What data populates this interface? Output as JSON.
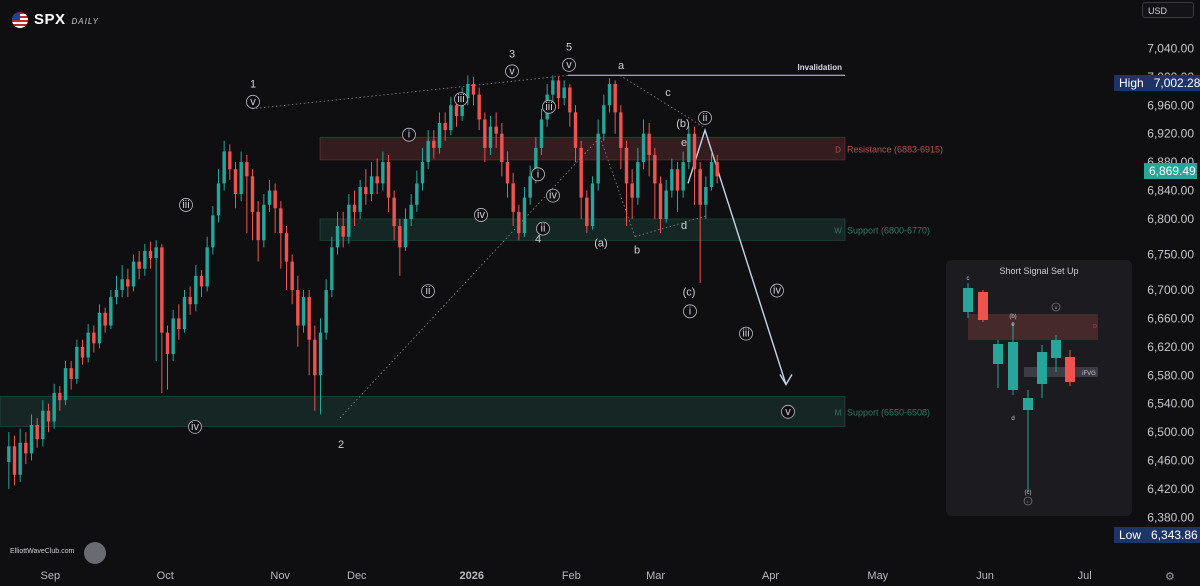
{
  "header": {
    "ticker": "SPX",
    "timeframe": "DAILY",
    "currency": "USD"
  },
  "footer": {
    "site": "ElliottWaveClub.com"
  },
  "price_badges": {
    "high_label": "High",
    "high_value": "7,002.28",
    "last_value": "6,869.49",
    "low_label": "Low",
    "low_value": "6,343.86"
  },
  "inset": {
    "title": "Short Signal Set Up",
    "labels": [
      "c",
      "(b)",
      "e",
      "ii",
      "d",
      "(c)",
      "i",
      "iFVG",
      "D"
    ]
  },
  "chart_data": {
    "type": "candlestick",
    "title": "",
    "y_axis": {
      "position": "right",
      "ylim": [
        6320,
        7080
      ],
      "ticks": [
        7040,
        7000,
        6960,
        6920,
        6880,
        6840,
        6800,
        6750,
        6700,
        6660,
        6620,
        6580,
        6540,
        6500,
        6460,
        6420,
        6380
      ],
      "tick_labels": [
        "7,040.00",
        "7,000.00",
        "6,960.00",
        "6,920.00",
        "6,880.00",
        "6,840.00",
        "6,800.00",
        "6,750.00",
        "6,700.00",
        "6,660.00",
        "6,620.00",
        "6,580.00",
        "6,540.00",
        "6,500.00",
        "6,460.00",
        "6,420.00",
        "6,380.00"
      ]
    },
    "x_axis": {
      "tick_labels": [
        "Sep",
        "Oct",
        "Nov",
        "Dec",
        "2026",
        "Feb",
        "Mar",
        "Apr",
        "May",
        "Jun",
        "Jul"
      ],
      "tick_pos": [
        0.5,
        2.0,
        3.5,
        4.5,
        6.0,
        7.3,
        8.4,
        9.9,
        11.3,
        12.7,
        14.0
      ]
    },
    "candles": [
      [
        6458,
        6480,
        6420,
        6500
      ],
      [
        6480,
        6440,
        6425,
        6495
      ],
      [
        6440,
        6485,
        6430,
        6505
      ],
      [
        6485,
        6470,
        6455,
        6500
      ],
      [
        6470,
        6510,
        6460,
        6525
      ],
      [
        6510,
        6490,
        6478,
        6520
      ],
      [
        6490,
        6530,
        6480,
        6545
      ],
      [
        6530,
        6515,
        6500,
        6540
      ],
      [
        6515,
        6555,
        6505,
        6568
      ],
      [
        6555,
        6545,
        6530,
        6565
      ],
      [
        6545,
        6590,
        6538,
        6600
      ],
      [
        6590,
        6575,
        6560,
        6600
      ],
      [
        6575,
        6620,
        6568,
        6630
      ],
      [
        6620,
        6605,
        6595,
        6630
      ],
      [
        6605,
        6640,
        6598,
        6652
      ],
      [
        6640,
        6625,
        6612,
        6650
      ],
      [
        6625,
        6668,
        6618,
        6680
      ],
      [
        6668,
        6650,
        6640,
        6675
      ],
      [
        6650,
        6690,
        6645,
        6700
      ],
      [
        6690,
        6700,
        6680,
        6720
      ],
      [
        6700,
        6715,
        6690,
        6735
      ],
      [
        6715,
        6705,
        6690,
        6730
      ],
      [
        6705,
        6740,
        6698,
        6750
      ],
      [
        6740,
        6730,
        6715,
        6755
      ],
      [
        6730,
        6755,
        6720,
        6765
      ],
      [
        6755,
        6745,
        6730,
        6768
      ],
      [
        6745,
        6760,
        6600,
        6770
      ],
      [
        6760,
        6640,
        6555,
        6765
      ],
      [
        6640,
        6610,
        6560,
        6650
      ],
      [
        6610,
        6660,
        6600,
        6672
      ],
      [
        6660,
        6645,
        6630,
        6680
      ],
      [
        6645,
        6690,
        6640,
        6700
      ],
      [
        6690,
        6680,
        6665,
        6705
      ],
      [
        6680,
        6720,
        6670,
        6735
      ],
      [
        6720,
        6705,
        6690,
        6728
      ],
      [
        6705,
        6760,
        6698,
        6775
      ],
      [
        6760,
        6805,
        6750,
        6818
      ],
      [
        6805,
        6850,
        6795,
        6870
      ],
      [
        6850,
        6895,
        6840,
        6910
      ],
      [
        6895,
        6870,
        6855,
        6905
      ],
      [
        6870,
        6835,
        6815,
        6880
      ],
      [
        6835,
        6880,
        6825,
        6895
      ],
      [
        6880,
        6860,
        6780,
        6890
      ],
      [
        6860,
        6810,
        6770,
        6870
      ],
      [
        6810,
        6770,
        6740,
        6825
      ],
      [
        6770,
        6820,
        6760,
        6835
      ],
      [
        6820,
        6840,
        6810,
        6855
      ],
      [
        6840,
        6815,
        6780,
        6850
      ],
      [
        6815,
        6780,
        6730,
        6825
      ],
      [
        6780,
        6740,
        6700,
        6790
      ],
      [
        6740,
        6700,
        6680,
        6750
      ],
      [
        6700,
        6650,
        6620,
        6720
      ],
      [
        6650,
        6690,
        6640,
        6700
      ],
      [
        6690,
        6630,
        6580,
        6700
      ],
      [
        6630,
        6580,
        6530,
        6650
      ],
      [
        6580,
        6640,
        6525,
        6660
      ],
      [
        6640,
        6700,
        6630,
        6715
      ],
      [
        6700,
        6760,
        6690,
        6775
      ],
      [
        6760,
        6790,
        6750,
        6810
      ],
      [
        6790,
        6775,
        6760,
        6810
      ],
      [
        6775,
        6820,
        6765,
        6835
      ],
      [
        6820,
        6810,
        6790,
        6840
      ],
      [
        6810,
        6845,
        6800,
        6855
      ],
      [
        6845,
        6835,
        6820,
        6870
      ],
      [
        6835,
        6860,
        6825,
        6880
      ],
      [
        6860,
        6850,
        6835,
        6885
      ],
      [
        6850,
        6880,
        6840,
        6895
      ],
      [
        6880,
        6830,
        6810,
        6890
      ],
      [
        6830,
        6790,
        6770,
        6840
      ],
      [
        6790,
        6760,
        6720,
        6800
      ],
      [
        6760,
        6800,
        6755,
        6815
      ],
      [
        6800,
        6820,
        6790,
        6835
      ],
      [
        6820,
        6850,
        6810,
        6868
      ],
      [
        6850,
        6880,
        6840,
        6900
      ],
      [
        6880,
        6910,
        6870,
        6925
      ],
      [
        6910,
        6900,
        6885,
        6925
      ],
      [
        6900,
        6935,
        6892,
        6950
      ],
      [
        6935,
        6925,
        6910,
        6950
      ],
      [
        6925,
        6960,
        6918,
        6972
      ],
      [
        6960,
        6945,
        6930,
        6975
      ],
      [
        6945,
        6970,
        6938,
        6985
      ],
      [
        6970,
        6990,
        6960,
        7002
      ],
      [
        6990,
        6975,
        6960,
        7000
      ],
      [
        6975,
        6940,
        6925,
        6985
      ],
      [
        6940,
        6900,
        6880,
        6950
      ],
      [
        6900,
        6930,
        6890,
        6945
      ],
      [
        6930,
        6920,
        6900,
        6950
      ],
      [
        6920,
        6880,
        6860,
        6935
      ],
      [
        6880,
        6850,
        6830,
        6895
      ],
      [
        6850,
        6810,
        6790,
        6865
      ],
      [
        6810,
        6780,
        6770,
        6820
      ],
      [
        6780,
        6830,
        6775,
        6845
      ],
      [
        6830,
        6860,
        6820,
        6875
      ],
      [
        6860,
        6900,
        6850,
        6915
      ],
      [
        6900,
        6940,
        6890,
        6955
      ],
      [
        6940,
        6975,
        6930,
        6990
      ],
      [
        6975,
        6995,
        6965,
        7002
      ],
      [
        6995,
        6970,
        6955,
        7000
      ],
      [
        6970,
        6985,
        6960,
        6995
      ],
      [
        6985,
        6950,
        6930,
        6990
      ],
      [
        6950,
        6900,
        6880,
        6960
      ],
      [
        6900,
        6830,
        6800,
        6910
      ],
      [
        6830,
        6790,
        6780,
        6840
      ],
      [
        6790,
        6850,
        6785,
        6860
      ],
      [
        6850,
        6920,
        6840,
        6940
      ],
      [
        6920,
        6960,
        6910,
        6975
      ],
      [
        6960,
        6990,
        6950,
        6998
      ],
      [
        6990,
        6950,
        6920,
        6995
      ],
      [
        6950,
        6900,
        6870,
        6960
      ],
      [
        6900,
        6850,
        6790,
        6910
      ],
      [
        6850,
        6830,
        6800,
        6870
      ],
      [
        6830,
        6880,
        6820,
        6900
      ],
      [
        6880,
        6920,
        6870,
        6940
      ],
      [
        6920,
        6890,
        6860,
        6935
      ],
      [
        6890,
        6850,
        6800,
        6900
      ],
      [
        6850,
        6800,
        6780,
        6860
      ],
      [
        6800,
        6840,
        6795,
        6855
      ],
      [
        6840,
        6870,
        6830,
        6885
      ],
      [
        6870,
        6840,
        6810,
        6880
      ],
      [
        6840,
        6880,
        6830,
        6895
      ],
      [
        6880,
        6920,
        6870,
        6930
      ],
      [
        6920,
        6870,
        6820,
        6930
      ],
      [
        6870,
        6820,
        6710,
        6880
      ],
      [
        6820,
        6845,
        6800,
        6860
      ],
      [
        6845,
        6880,
        6840,
        6895
      ],
      [
        6880,
        6860,
        6850,
        6890
      ]
    ],
    "zones": [
      {
        "name": "Resistance (6883-6915)",
        "low": 6883,
        "high": 6915,
        "tag": "D",
        "color": "#c0504d"
      },
      {
        "name": "Support (6800-6770)",
        "low": 6770,
        "high": 6800,
        "tag": "W",
        "color": "#2e7d62"
      },
      {
        "name": "Support (6550-6508)",
        "low": 6508,
        "high": 6550,
        "tag": "M",
        "color": "#2e7d62"
      }
    ],
    "invalidation": {
      "label": "Invalidation",
      "price": 7002.28
    },
    "wave_labels": [
      "1",
      "2",
      "3",
      "4",
      "5",
      "i",
      "ii",
      "iii",
      "iv",
      "v",
      "a",
      "b",
      "c",
      "d",
      "e",
      "(a)",
      "(b)",
      "(c)"
    ],
    "colors": {
      "up": "#26a69a",
      "down": "#ef5350",
      "background": "#0f0f12",
      "projection": "#c6d4ea"
    }
  }
}
